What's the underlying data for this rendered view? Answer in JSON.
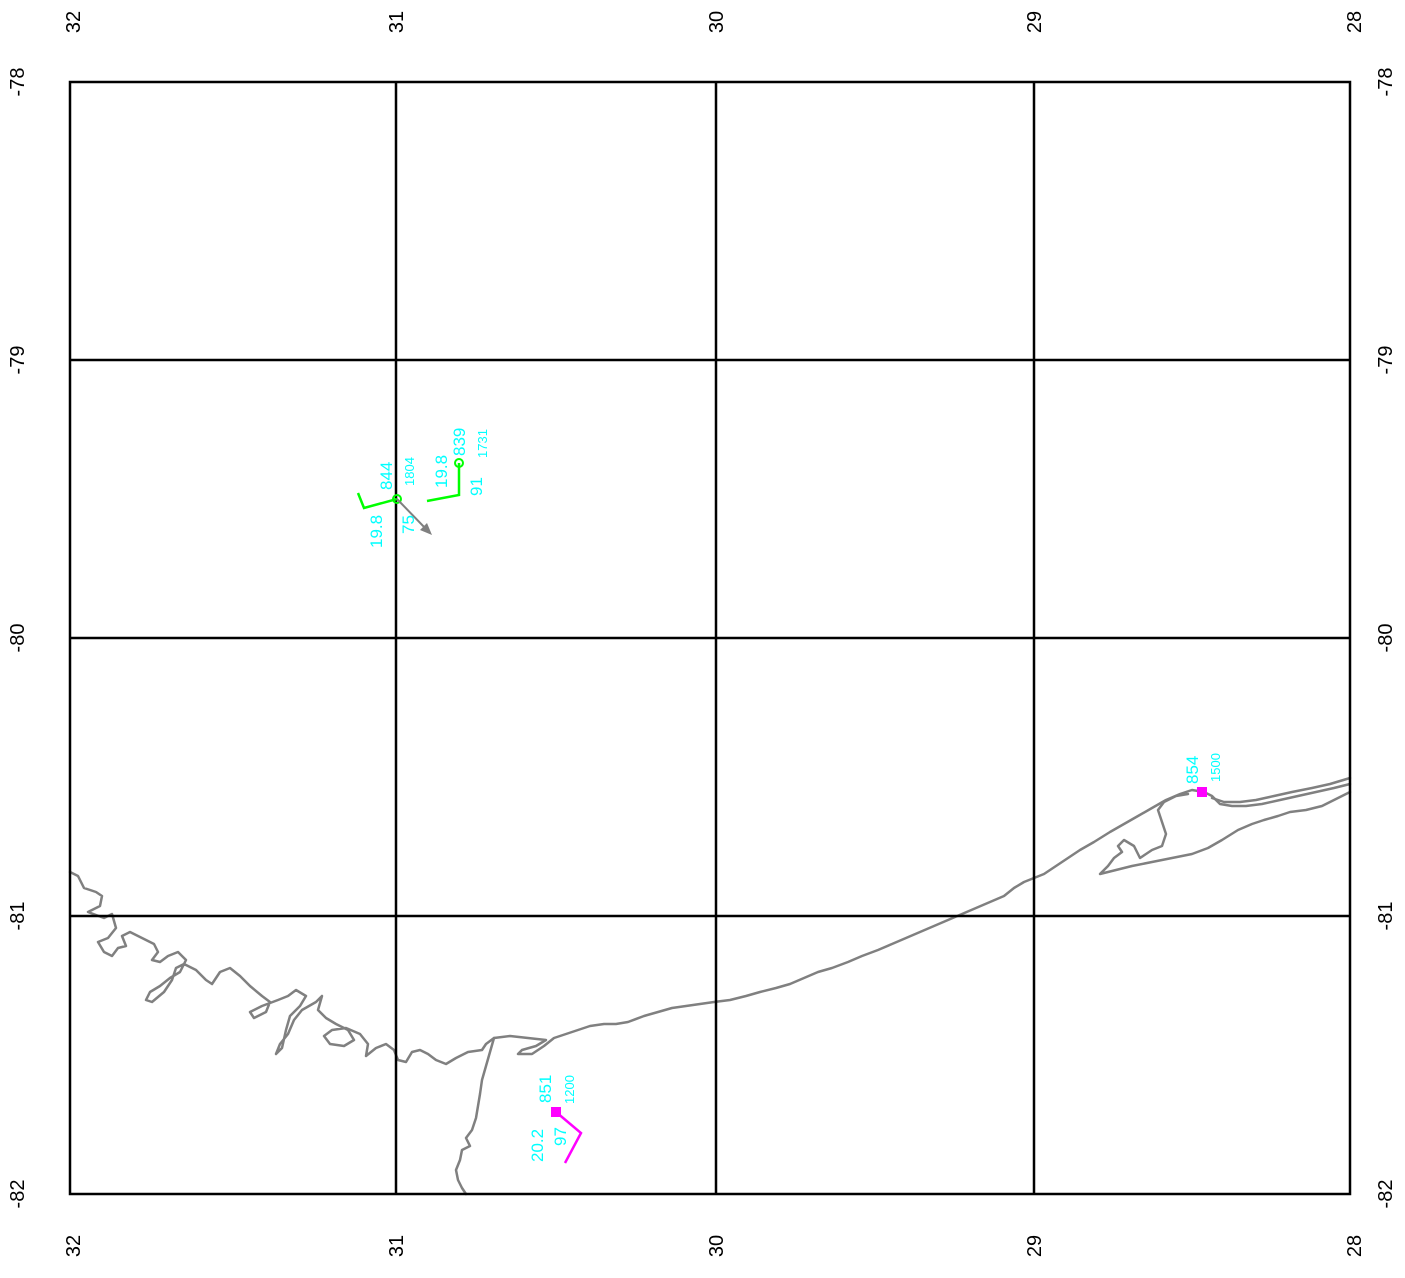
{
  "map": {
    "lon_ticks": [
      "32",
      "31",
      "30",
      "29",
      "28"
    ],
    "lat_ticks": [
      "-78",
      "-79",
      "-80",
      "-81",
      "-82"
    ],
    "colors": {
      "grid": "#000000",
      "coast": "#808080",
      "label": "#00ffff",
      "station_green": "#00ff00",
      "station_magenta": "#ff00ff",
      "arrow": "#808080"
    },
    "stations": [
      {
        "id": "844",
        "marker": "circle",
        "color": "green",
        "pressure": "844",
        "time": "1804",
        "temp": "19.8",
        "humidity": "75"
      },
      {
        "id": "839",
        "marker": "circle",
        "color": "green",
        "pressure": "839",
        "time": "1731",
        "temp": "19.8",
        "humidity": "91"
      },
      {
        "id": "854",
        "marker": "square",
        "color": "magenta",
        "pressure": "854",
        "time": "1500"
      },
      {
        "id": "851",
        "marker": "square",
        "color": "magenta",
        "pressure": "851",
        "time": "1200",
        "temp": "20.2",
        "humidity": "97"
      }
    ]
  }
}
